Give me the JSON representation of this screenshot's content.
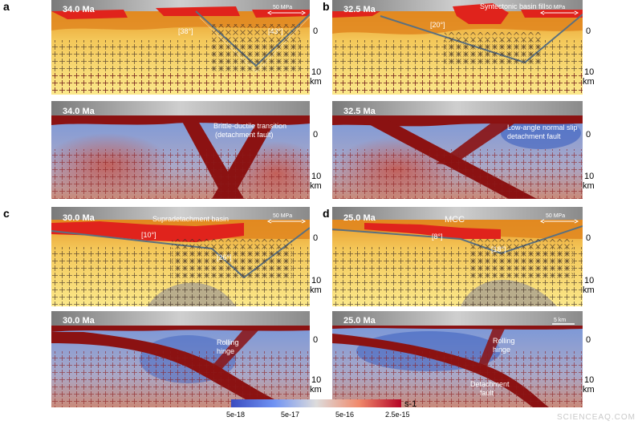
{
  "labels": {
    "a": "a",
    "b": "b",
    "c": "c",
    "d": "d"
  },
  "axis": {
    "zero": "0",
    "ten": "10",
    "km": "km"
  },
  "panels": {
    "a_top": {
      "age": "34.0 Ma",
      "angle1": "[38°]",
      "angle2": "[43°]",
      "scale": "50 MPa"
    },
    "a_bot": {
      "age": "34.0 Ma",
      "annot1": "Brittle-ductile transition",
      "annot2": "(detachment fault)"
    },
    "b_top": {
      "age": "32.5 Ma",
      "angle1": "[20°]",
      "annot1": "Syntectonic basin fill",
      "scale": "50 MPa"
    },
    "b_bot": {
      "age": "32.5 Ma",
      "annot1": "Low-angle normal slip",
      "annot2": "detachment fault"
    },
    "c_top": {
      "age": "30.0 Ma",
      "angle1": "[10°]",
      "angle2": "[26°]",
      "annot1": "Supradetachment  basin",
      "scale": "50 MPa"
    },
    "c_bot": {
      "age": "30.0 Ma",
      "annot1": "Rolling",
      "annot2": "hinge"
    },
    "d_top": {
      "age": "25.0 Ma",
      "angle1": "[8°]",
      "angle2": "[18°]",
      "annot1": "MCC",
      "scale": "50 MPa"
    },
    "d_bot": {
      "age": "25.0 Ma",
      "annot1": "Rolling",
      "annot2": "hinge",
      "annot3": "Detachment",
      "annot4": "fault",
      "scale": "5 km"
    }
  },
  "colorbar": {
    "ticks": [
      "5e-18",
      "5e-17",
      "5e-16",
      "2.5e-15"
    ],
    "unit": "s-1",
    "colors": [
      "#3b4cc0",
      "#dddcdc",
      "#b40426"
    ]
  },
  "watermark": "SCIENCEAQ.COM"
}
